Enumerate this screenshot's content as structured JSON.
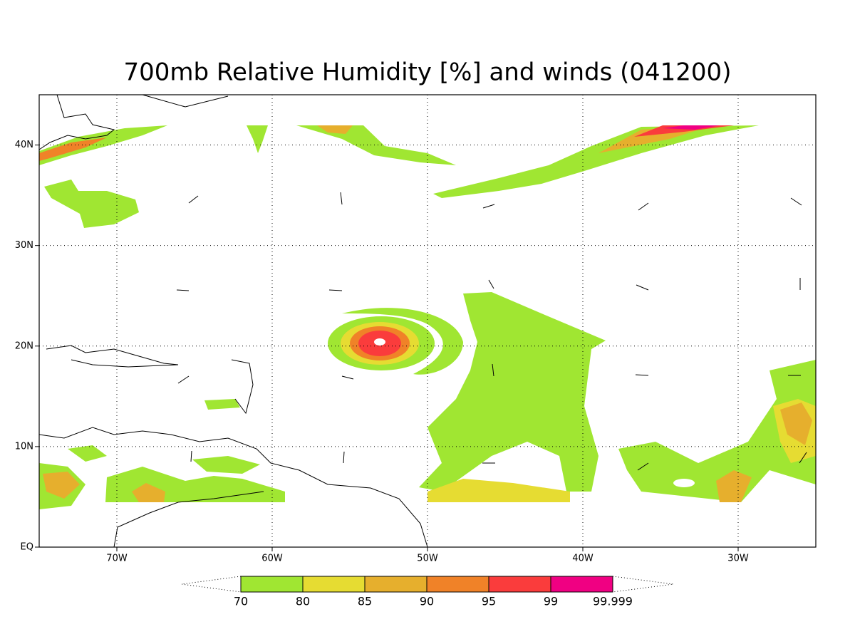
{
  "chart_data": {
    "type": "map",
    "title": "700mb Relative Humidity [%] and winds (041200)",
    "xlim": [
      -75,
      -25
    ],
    "ylim": [
      0,
      45
    ],
    "xticks": [
      {
        "value": -70,
        "label": "70W"
      },
      {
        "value": -60,
        "label": "60W"
      },
      {
        "value": -50,
        "label": "50W"
      },
      {
        "value": -40,
        "label": "40W"
      },
      {
        "value": -30,
        "label": "30W"
      }
    ],
    "yticks": [
      {
        "value": 0,
        "label": "EQ"
      },
      {
        "value": 10,
        "label": "10N"
      },
      {
        "value": 20,
        "label": "20N"
      },
      {
        "value": 30,
        "label": "30N"
      },
      {
        "value": 40,
        "label": "40N"
      }
    ],
    "grid": true,
    "colorbar": {
      "levels": [
        70,
        80,
        85,
        90,
        95,
        99,
        99.999
      ],
      "colors": [
        "#a0e632",
        "#e6dc32",
        "#e6af2d",
        "#f08228",
        "#fa3c3c",
        "#f00082"
      ]
    }
  }
}
